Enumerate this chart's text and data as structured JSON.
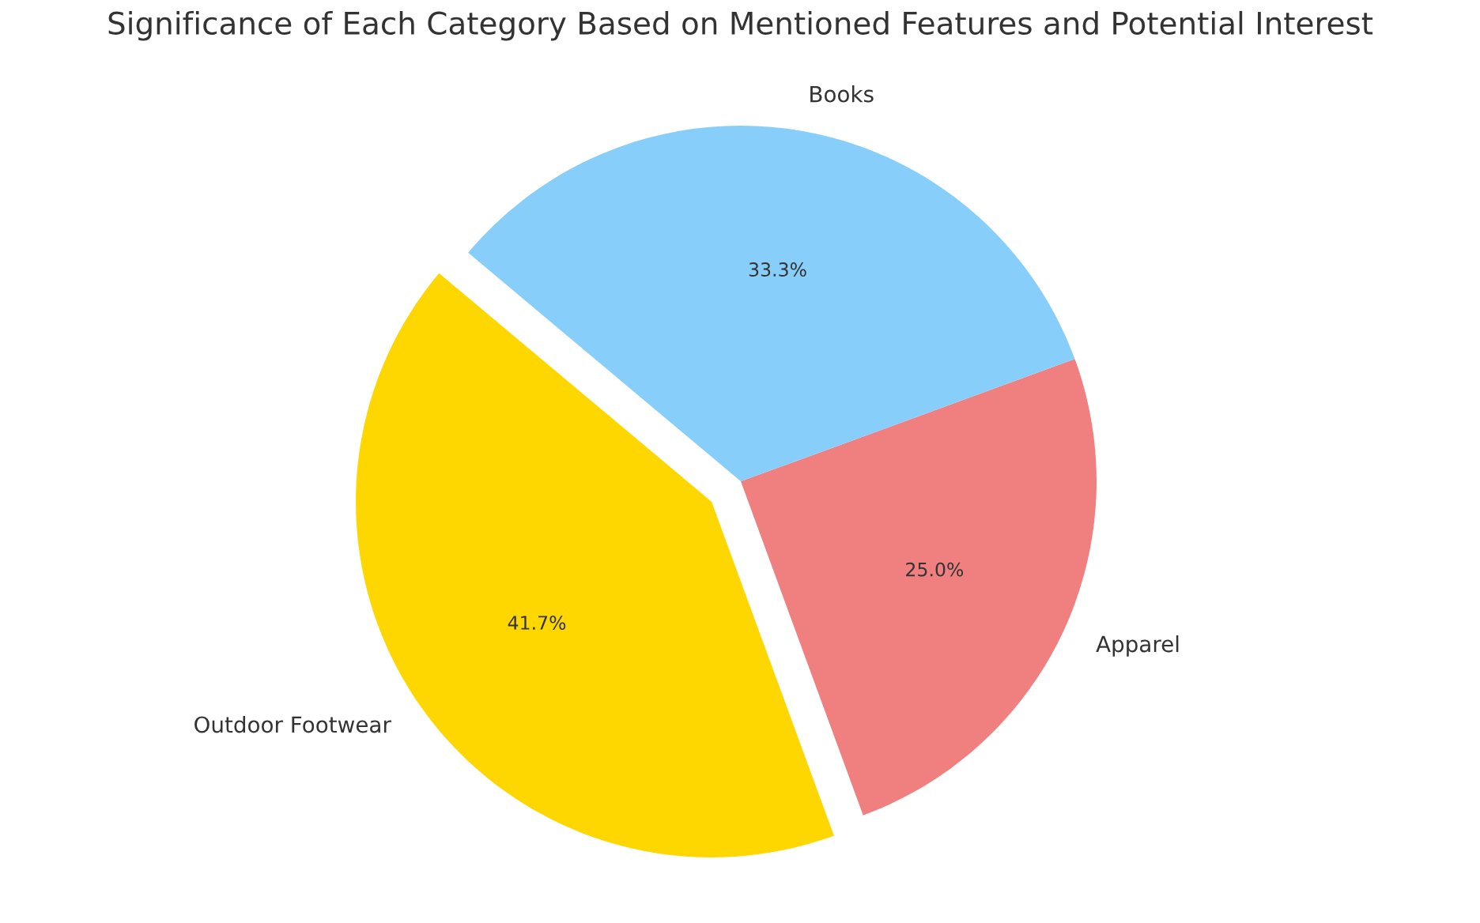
{
  "chart_data": {
    "type": "pie",
    "title": "Significance of Each Category Based on Mentioned Features and Potential Interest",
    "categories": [
      "Outdoor Footwear",
      "Apparel",
      "Books"
    ],
    "values": [
      41.7,
      25.0,
      33.3
    ],
    "colors": [
      "#ffd700",
      "#f08080",
      "#87cefa"
    ],
    "value_labels": [
      "41.7%",
      "25.0%",
      "33.3%"
    ]
  }
}
